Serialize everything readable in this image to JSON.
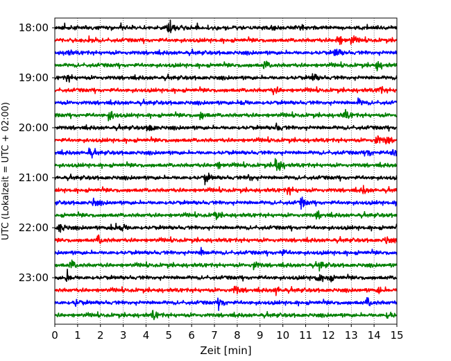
{
  "chart_data": {
    "type": "line",
    "chart_kind": "helicorder",
    "xlabel": "Zeit  [min]",
    "ylabel": "UTC (Lokalzeit = UTC + 02:00)",
    "xlim": [
      0,
      15
    ],
    "x_ticks": [
      "0",
      "1",
      "2",
      "3",
      "4",
      "5",
      "6",
      "7",
      "8",
      "9",
      "10",
      "11",
      "12",
      "13",
      "14",
      "15"
    ],
    "y_ticks": [
      "18:00",
      "19:00",
      "20:00",
      "21:00",
      "22:00",
      "23:00"
    ],
    "trace_interval_min": 15,
    "grid": "vertical dotted lines at each minute",
    "legend": "none",
    "colors": [
      "#000000",
      "#ff0000",
      "#0000ff",
      "#008000"
    ],
    "traces": [
      {
        "start": "18:00",
        "color": "#000000",
        "events": [
          [
            5.0,
            3.5
          ]
        ]
      },
      {
        "start": "18:15",
        "color": "#ff0000",
        "events": [
          [
            12.4,
            2.5
          ],
          [
            13.0,
            1.5
          ]
        ]
      },
      {
        "start": "18:30",
        "color": "#0000ff",
        "events": [
          [
            12.3,
            2.0
          ],
          [
            0.5,
            1.2
          ]
        ]
      },
      {
        "start": "18:45",
        "color": "#008000",
        "events": [
          [
            14.1,
            1.8
          ],
          [
            9.2,
            1.5
          ]
        ]
      },
      {
        "start": "19:00",
        "color": "#000000",
        "events": [
          [
            11.3,
            1.6
          ],
          [
            0.5,
            1.5
          ]
        ]
      },
      {
        "start": "19:15",
        "color": "#ff0000",
        "events": [
          [
            14.2,
            1.6
          ],
          [
            9.6,
            1.3
          ]
        ]
      },
      {
        "start": "19:30",
        "color": "#0000ff",
        "events": [
          [
            8.2,
            1.3
          ],
          [
            13.3,
            1.3
          ]
        ]
      },
      {
        "start": "19:45",
        "color": "#008000",
        "events": [
          [
            2.4,
            2.2
          ],
          [
            6.4,
            1.5
          ],
          [
            12.7,
            1.8
          ]
        ]
      },
      {
        "start": "20:00",
        "color": "#000000",
        "events": [
          [
            4.1,
            2.0
          ],
          [
            9.7,
            1.6
          ]
        ]
      },
      {
        "start": "20:15",
        "color": "#ff0000",
        "events": [
          [
            14.1,
            2.0
          ],
          [
            14.5,
            1.5
          ]
        ]
      },
      {
        "start": "20:30",
        "color": "#0000ff",
        "events": [
          [
            14.8,
            2.2
          ],
          [
            13.7,
            1.6
          ],
          [
            1.5,
            1.5
          ]
        ]
      },
      {
        "start": "20:45",
        "color": "#008000",
        "events": [
          [
            9.7,
            4.0
          ],
          [
            7.1,
            1.5
          ]
        ]
      },
      {
        "start": "21:00",
        "color": "#000000",
        "events": [
          [
            6.6,
            2.0
          ],
          [
            8.5,
            1.3
          ]
        ]
      },
      {
        "start": "21:15",
        "color": "#ff0000",
        "events": [
          [
            10.2,
            1.6
          ],
          [
            13.5,
            1.3
          ]
        ]
      },
      {
        "start": "21:30",
        "color": "#0000ff",
        "events": [
          [
            10.8,
            1.8
          ],
          [
            1.7,
            1.2
          ]
        ]
      },
      {
        "start": "21:45",
        "color": "#008000",
        "events": [
          [
            7.0,
            1.5
          ],
          [
            11.5,
            1.3
          ]
        ]
      },
      {
        "start": "22:00",
        "color": "#000000",
        "events": [
          [
            0.2,
            2.2
          ],
          [
            2.9,
            2.2
          ],
          [
            2.5,
            1.6
          ]
        ]
      },
      {
        "start": "22:15",
        "color": "#ff0000",
        "events": [
          [
            1.9,
            1.8
          ],
          [
            14.5,
            1.3
          ]
        ]
      },
      {
        "start": "22:30",
        "color": "#0000ff",
        "events": [
          [
            6.4,
            1.3
          ],
          [
            9.9,
            1.3
          ]
        ]
      },
      {
        "start": "22:45",
        "color": "#008000",
        "events": [
          [
            0.7,
            1.8
          ],
          [
            8.7,
            1.8
          ],
          [
            11.6,
            1.5
          ]
        ]
      },
      {
        "start": "23:00",
        "color": "#000000",
        "events": [
          [
            0.5,
            2.2
          ],
          [
            11.5,
            2.0
          ],
          [
            12.0,
            1.5
          ]
        ]
      },
      {
        "start": "23:15",
        "color": "#ff0000",
        "events": [
          [
            7.9,
            1.8
          ],
          [
            9.7,
            1.5
          ],
          [
            14.2,
            1.3
          ]
        ]
      },
      {
        "start": "23:30",
        "color": "#0000ff",
        "events": [
          [
            7.2,
            2.2
          ],
          [
            13.7,
            1.8
          ],
          [
            0.9,
            1.2
          ]
        ]
      },
      {
        "start": "23:45",
        "color": "#008000",
        "events": [
          [
            14.6,
            1.5
          ],
          [
            4.3,
            1.5
          ]
        ]
      }
    ]
  }
}
